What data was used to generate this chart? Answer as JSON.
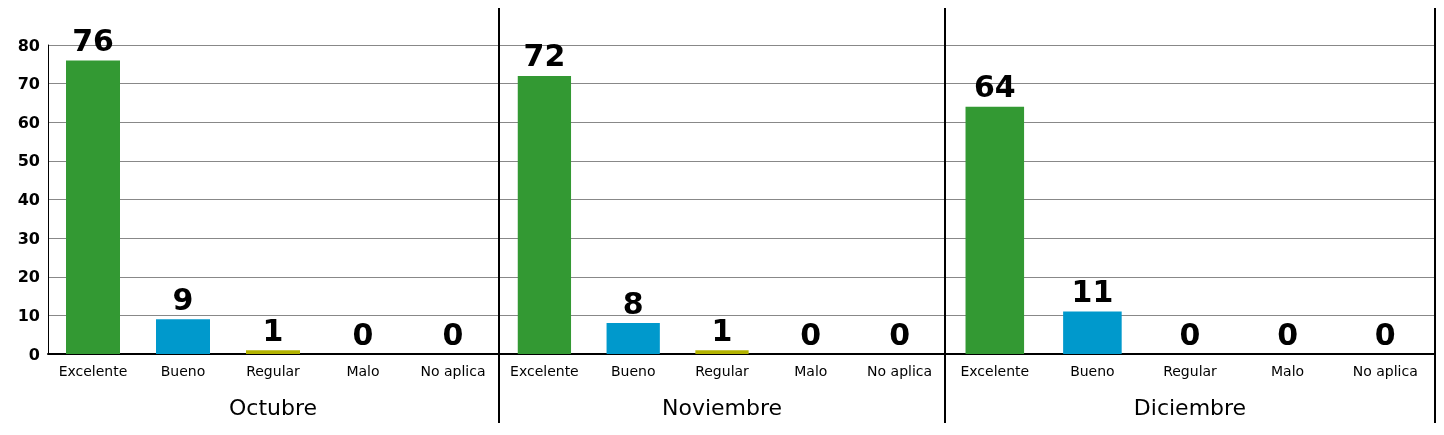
{
  "chart_data": [
    {
      "type": "bar",
      "xlabel": "Octubre",
      "categories": [
        "Excelente",
        "Bueno",
        "Regular",
        "Malo",
        "No aplica"
      ],
      "values": [
        76,
        9,
        1,
        0,
        0
      ],
      "colors": [
        "#339933",
        "#0099cc",
        "#b3b300",
        null,
        null
      ],
      "ylim": [
        0,
        80
      ],
      "yticks": [
        0,
        10,
        20,
        30,
        40,
        50,
        60,
        70,
        80
      ],
      "grid": "y",
      "data_labels": true
    },
    {
      "type": "bar",
      "xlabel": "Noviembre",
      "categories": [
        "Excelente",
        "Bueno",
        "Regular",
        "Malo",
        "No aplica"
      ],
      "values": [
        72,
        8,
        1,
        0,
        0
      ],
      "colors": [
        "#339933",
        "#0099cc",
        "#b3b300",
        null,
        null
      ],
      "ylim": [
        0,
        80
      ],
      "yticks": [
        0,
        10,
        20,
        30,
        40,
        50,
        60,
        70,
        80
      ],
      "grid": "y",
      "data_labels": true,
      "tick_labels": "x"
    },
    {
      "type": "bar",
      "xlabel": "Diciembre",
      "categories": [
        "Excelente",
        "Bueno",
        "Regular",
        "Malo",
        "No aplica"
      ],
      "values": [
        64,
        11,
        0,
        0,
        0
      ],
      "colors": [
        "#339933",
        "#0099cc",
        null,
        null,
        null
      ],
      "ylim": [
        0,
        80
      ],
      "yticks": [
        0,
        10,
        20,
        30,
        40,
        50,
        60,
        70,
        80
      ],
      "grid": "y",
      "data_labels": true,
      "tick_labels": "x"
    }
  ]
}
